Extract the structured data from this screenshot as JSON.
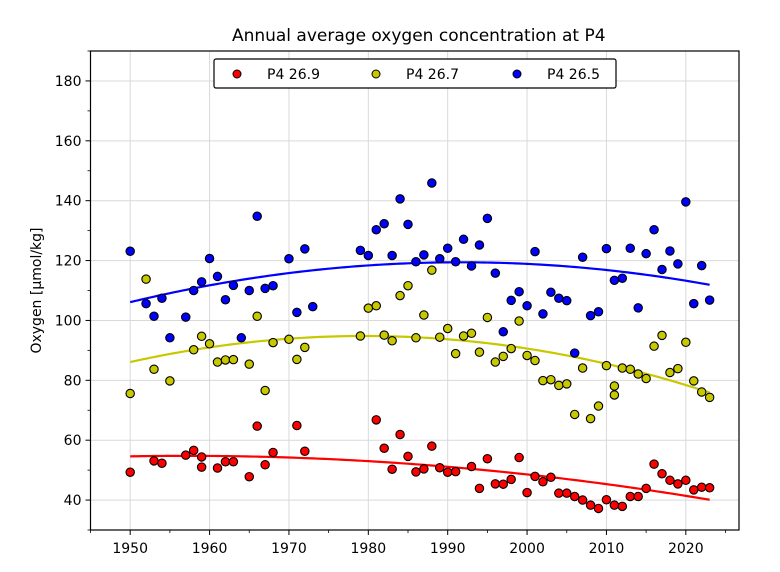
{
  "chart_data": {
    "type": "scatter",
    "title": "Annual average oxygen concentration at P4",
    "xlabel": "",
    "ylabel": "Oxygen [μmol/kg]",
    "xlim": [
      1945,
      2026.7
    ],
    "ylim": [
      30,
      190
    ],
    "xticks": [
      1950,
      1960,
      1970,
      1980,
      1990,
      2000,
      2010,
      2020
    ],
    "yticks": [
      40,
      60,
      80,
      100,
      120,
      140,
      160,
      180
    ],
    "x_minor_step": 5,
    "y_minor_step": 10,
    "grid": true,
    "legend": {
      "placement": "top-center",
      "ncol": 3
    },
    "series": [
      {
        "name": "P4 26.9",
        "color": "#ff0000",
        "trend": {
          "type": "quadratic",
          "x0": 1950,
          "coeffs": [
            54.6,
            0.04803,
            -0.003379
          ],
          "x_range": [
            1950,
            2023
          ]
        },
        "points": [
          [
            1950,
            49.3
          ],
          [
            1953,
            53.1
          ],
          [
            1954,
            52.3
          ],
          [
            1957,
            55.0
          ],
          [
            1958,
            56.6
          ],
          [
            1959,
            54.4
          ],
          [
            1959,
            51.0
          ],
          [
            1961,
            50.7
          ],
          [
            1962,
            52.8
          ],
          [
            1963,
            52.8
          ],
          [
            1965,
            47.8
          ],
          [
            1966,
            64.7
          ],
          [
            1967,
            51.8
          ],
          [
            1968,
            55.9
          ],
          [
            1971,
            64.9
          ],
          [
            1972,
            56.3
          ],
          [
            1981,
            66.8
          ],
          [
            1982,
            57.3
          ],
          [
            1983,
            50.3
          ],
          [
            1984,
            61.9
          ],
          [
            1985,
            54.6
          ],
          [
            1986,
            49.4
          ],
          [
            1987,
            50.4
          ],
          [
            1988,
            58.0
          ],
          [
            1989,
            50.8
          ],
          [
            1990,
            49.3
          ],
          [
            1991,
            49.5
          ],
          [
            1993,
            51.2
          ],
          [
            1994,
            43.9
          ],
          [
            1995,
            53.8
          ],
          [
            1996,
            45.4
          ],
          [
            1997,
            45.3
          ],
          [
            1998,
            46.9
          ],
          [
            1999,
            54.2
          ],
          [
            2000,
            42.5
          ],
          [
            2001,
            47.9
          ],
          [
            2002,
            46.1
          ],
          [
            2003,
            47.6
          ],
          [
            2004,
            42.3
          ],
          [
            2005,
            42.3
          ],
          [
            2006,
            41.2
          ],
          [
            2007,
            40.0
          ],
          [
            2008,
            38.3
          ],
          [
            2009,
            37.2
          ],
          [
            2010,
            40.1
          ],
          [
            2011,
            38.3
          ],
          [
            2012,
            37.9
          ],
          [
            2013,
            41.2
          ],
          [
            2014,
            41.2
          ],
          [
            2015,
            43.9
          ],
          [
            2016,
            52.0
          ],
          [
            2017,
            48.8
          ],
          [
            2018,
            46.6
          ],
          [
            2019,
            45.4
          ],
          [
            2020,
            46.6
          ],
          [
            2021,
            43.4
          ],
          [
            2022,
            44.3
          ],
          [
            2023,
            44.1
          ]
        ]
      },
      {
        "name": "P4 26.7",
        "color": "#c8c800",
        "trend": {
          "type": "quadratic",
          "x0": 1950,
          "coeffs": [
            86.1,
            0.5898,
            -0.009994
          ],
          "x_range": [
            1950,
            2023
          ]
        },
        "points": [
          [
            1950,
            75.6
          ],
          [
            1952,
            113.8
          ],
          [
            1953,
            83.7
          ],
          [
            1955,
            79.8
          ],
          [
            1958,
            90.2
          ],
          [
            1959,
            94.7
          ],
          [
            1960,
            92.2
          ],
          [
            1961,
            86.1
          ],
          [
            1962,
            86.8
          ],
          [
            1963,
            86.9
          ],
          [
            1965,
            85.4
          ],
          [
            1966,
            101.4
          ],
          [
            1967,
            76.6
          ],
          [
            1968,
            92.6
          ],
          [
            1970,
            93.7
          ],
          [
            1971,
            87.0
          ],
          [
            1972,
            91.0
          ],
          [
            1979,
            94.8
          ],
          [
            1980,
            104.1
          ],
          [
            1981,
            104.9
          ],
          [
            1982,
            95.1
          ],
          [
            1983,
            93.2
          ],
          [
            1984,
            108.3
          ],
          [
            1985,
            111.6
          ],
          [
            1986,
            94.2
          ],
          [
            1987,
            101.8
          ],
          [
            1988,
            116.8
          ],
          [
            1989,
            94.4
          ],
          [
            1990,
            97.3
          ],
          [
            1991,
            88.9
          ],
          [
            1992,
            94.8
          ],
          [
            1993,
            95.7
          ],
          [
            1994,
            89.4
          ],
          [
            1995,
            101.0
          ],
          [
            1996,
            86.1
          ],
          [
            1997,
            88.0
          ],
          [
            1998,
            90.6
          ],
          [
            1999,
            99.8
          ],
          [
            2000,
            88.3
          ],
          [
            2001,
            86.6
          ],
          [
            2002,
            79.9
          ],
          [
            2003,
            80.2
          ],
          [
            2004,
            78.3
          ],
          [
            2005,
            78.8
          ],
          [
            2006,
            68.6
          ],
          [
            2007,
            84.1
          ],
          [
            2008,
            67.2
          ],
          [
            2009,
            71.4
          ],
          [
            2010,
            84.9
          ],
          [
            2011,
            78.1
          ],
          [
            2011,
            75.1
          ],
          [
            2012,
            84.1
          ],
          [
            2013,
            83.7
          ],
          [
            2014,
            82.1
          ],
          [
            2015,
            80.6
          ],
          [
            2016,
            91.4
          ],
          [
            2017,
            95.0
          ],
          [
            2018,
            82.6
          ],
          [
            2019,
            83.9
          ],
          [
            2020,
            92.7
          ],
          [
            2021,
            79.8
          ],
          [
            2022,
            76.1
          ],
          [
            2023,
            74.3
          ]
        ]
      },
      {
        "name": "P4 26.5",
        "color": "#0000ff",
        "trend": {
          "type": "quadratic",
          "x0": 1950,
          "coeffs": [
            106.1,
            0.6392,
            -0.007668
          ],
          "x_range": [
            1950,
            2023
          ]
        },
        "points": [
          [
            1950,
            123.1
          ],
          [
            1952,
            105.6
          ],
          [
            1953,
            101.4
          ],
          [
            1954,
            107.4
          ],
          [
            1955,
            94.2
          ],
          [
            1957,
            101.1
          ],
          [
            1958,
            110.0
          ],
          [
            1959,
            112.9
          ],
          [
            1960,
            120.7
          ],
          [
            1961,
            114.7
          ],
          [
            1962,
            106.9
          ],
          [
            1963,
            111.7
          ],
          [
            1964,
            94.2
          ],
          [
            1965,
            110.0
          ],
          [
            1966,
            134.8
          ],
          [
            1967,
            110.7
          ],
          [
            1968,
            111.6
          ],
          [
            1970,
            120.6
          ],
          [
            1971,
            102.7
          ],
          [
            1972,
            123.9
          ],
          [
            1973,
            104.6
          ],
          [
            1979,
            123.4
          ],
          [
            1980,
            121.7
          ],
          [
            1981,
            130.3
          ],
          [
            1982,
            132.3
          ],
          [
            1983,
            121.7
          ],
          [
            1984,
            140.6
          ],
          [
            1985,
            132.1
          ],
          [
            1986,
            119.6
          ],
          [
            1987,
            121.9
          ],
          [
            1988,
            145.9
          ],
          [
            1989,
            120.6
          ],
          [
            1990,
            124.1
          ],
          [
            1991,
            119.6
          ],
          [
            1992,
            127.1
          ],
          [
            1993,
            118.2
          ],
          [
            1994,
            125.2
          ],
          [
            1995,
            134.1
          ],
          [
            1996,
            115.8
          ],
          [
            1997,
            96.2
          ],
          [
            1998,
            106.7
          ],
          [
            1999,
            109.6
          ],
          [
            2000,
            104.9
          ],
          [
            2001,
            123.0
          ],
          [
            2002,
            102.2
          ],
          [
            2003,
            109.4
          ],
          [
            2004,
            107.4
          ],
          [
            2005,
            106.6
          ],
          [
            2006,
            89.1
          ],
          [
            2007,
            121.1
          ],
          [
            2008,
            101.6
          ],
          [
            2009,
            102.9
          ],
          [
            2010,
            124.0
          ],
          [
            2011,
            113.4
          ],
          [
            2012,
            114.1
          ],
          [
            2013,
            124.1
          ],
          [
            2014,
            104.2
          ],
          [
            2015,
            122.3
          ],
          [
            2016,
            130.3
          ],
          [
            2017,
            117.0
          ],
          [
            2018,
            123.2
          ],
          [
            2019,
            118.9
          ],
          [
            2020,
            139.6
          ],
          [
            2021,
            105.6
          ],
          [
            2022,
            118.3
          ],
          [
            2023,
            106.8
          ]
        ]
      }
    ]
  }
}
